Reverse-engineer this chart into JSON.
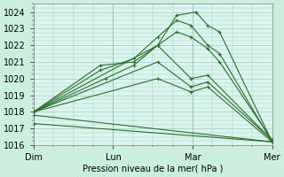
{
  "xlabel": "Pression niveau de la mer( hPa )",
  "bg_color": "#cceedd",
  "plot_bg_color": "#ddf5ee",
  "grid_color": "#99ccbb",
  "line_color": "#2d6e2d",
  "ylim": [
    1016,
    1024.5
  ],
  "yticks": [
    1016,
    1017,
    1018,
    1019,
    1020,
    1021,
    1022,
    1023,
    1024
  ],
  "day_labels": [
    "Dim",
    "Lun",
    "Mar",
    "Mer"
  ],
  "series": [
    {
      "x": [
        0,
        0.28,
        0.42,
        0.52,
        0.6,
        0.68,
        0.73,
        0.78,
        1.0
      ],
      "y": [
        1018.0,
        1020.8,
        1021.0,
        1022.0,
        1023.8,
        1024.0,
        1023.2,
        1022.8,
        1016.2
      ]
    },
    {
      "x": [
        0,
        0.28,
        0.42,
        0.52,
        0.6,
        0.66,
        0.73,
        0.78,
        1.0
      ],
      "y": [
        1018.0,
        1020.5,
        1021.2,
        1022.5,
        1023.5,
        1023.2,
        1022.0,
        1021.5,
        1016.2
      ]
    },
    {
      "x": [
        0,
        0.3,
        0.42,
        0.52,
        0.6,
        0.66,
        0.73,
        0.78,
        1.0
      ],
      "y": [
        1018.0,
        1020.0,
        1020.8,
        1022.0,
        1022.8,
        1022.5,
        1021.8,
        1021.0,
        1016.3
      ]
    },
    {
      "x": [
        0,
        0.52,
        0.66,
        0.73,
        1.0
      ],
      "y": [
        1018.0,
        1022.0,
        1020.0,
        1020.2,
        1016.3
      ]
    },
    {
      "x": [
        0,
        0.52,
        0.66,
        0.73,
        1.0
      ],
      "y": [
        1018.0,
        1021.0,
        1019.5,
        1019.8,
        1016.3
      ]
    },
    {
      "x": [
        0,
        0.52,
        0.66,
        0.73,
        1.0
      ],
      "y": [
        1018.0,
        1020.0,
        1019.2,
        1019.5,
        1016.2
      ]
    },
    {
      "x": [
        0,
        1.0
      ],
      "y": [
        1017.8,
        1016.2
      ]
    },
    {
      "x": [
        0,
        1.0
      ],
      "y": [
        1017.3,
        1016.2
      ]
    }
  ]
}
